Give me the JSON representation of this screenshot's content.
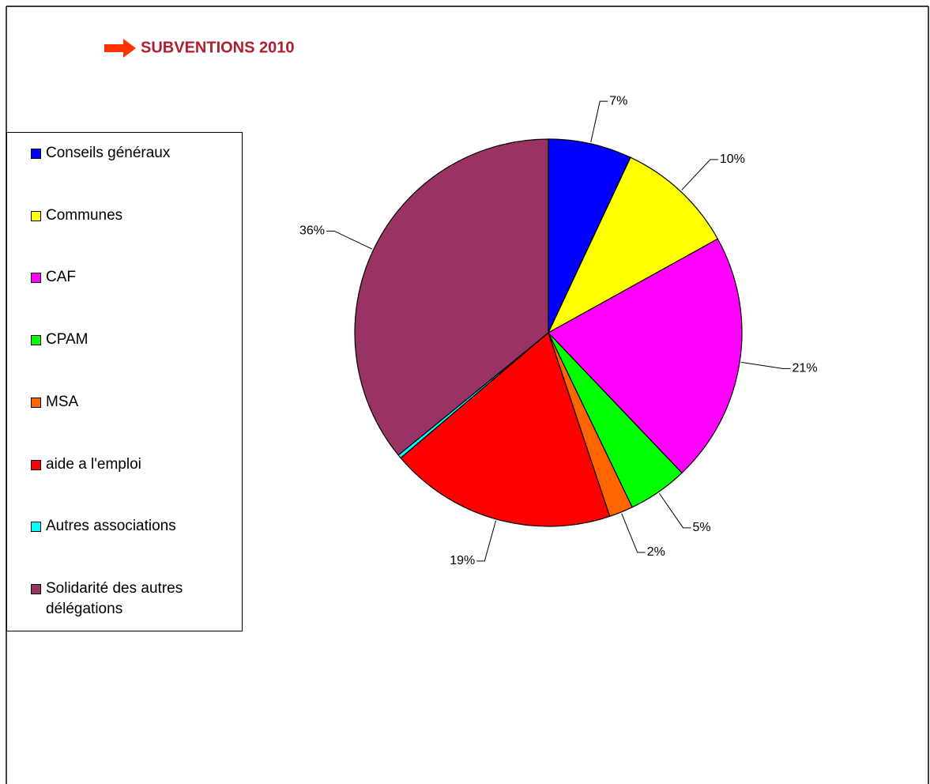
{
  "chart_data": {
    "type": "pie",
    "title": "SUBVENTIONS 2010",
    "categories": [
      "Conseils généraux",
      "Communes",
      "CAF",
      "CPAM",
      "MSA",
      "aide a l'emploi",
      "Autres associations",
      "Solidarité des autres délégations"
    ],
    "values": [
      7,
      10,
      21,
      5,
      2,
      19,
      0.3,
      36
    ],
    "value_labels": [
      "7%",
      "10%",
      "21%",
      "5%",
      "2%",
      "19%",
      null,
      "36%"
    ],
    "colors": [
      "#0000ff",
      "#ffff00",
      "#ff00ff",
      "#00ff00",
      "#ff6600",
      "#ff0000",
      "#00ffff",
      "#993366"
    ],
    "legend": "left"
  }
}
